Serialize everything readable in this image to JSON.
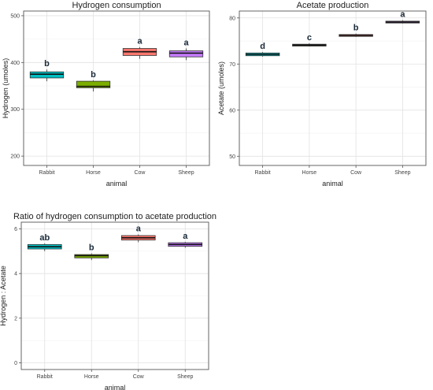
{
  "chart_data": [
    {
      "type": "box",
      "title": "Hydrogen consumption",
      "xlabel": "animal",
      "ylabel": "Hydrogen (umoles)",
      "categories": [
        "Rabbit",
        "Horse",
        "Cow",
        "Sheep"
      ],
      "ylim": [
        180,
        510
      ],
      "yticks": [
        200,
        300,
        400,
        500
      ],
      "boxes": [
        {
          "category": "Rabbit",
          "min": 360,
          "q1": 367,
          "median": 375,
          "q3": 380,
          "max": 385,
          "color": "#00bfc4",
          "letter": "b"
        },
        {
          "category": "Horse",
          "min": 338,
          "q1": 346,
          "median": 349,
          "q3": 360,
          "max": 362,
          "color": "#7cae00",
          "letter": "b"
        },
        {
          "category": "Cow",
          "min": 408,
          "q1": 415,
          "median": 423,
          "q3": 430,
          "max": 433,
          "color": "#f8766d",
          "letter": "a"
        },
        {
          "category": "Sheep",
          "min": 405,
          "q1": 412,
          "median": 420,
          "q3": 425,
          "max": 430,
          "color": "#c77cff",
          "letter": "a"
        }
      ],
      "grid": true
    },
    {
      "type": "box",
      "title": "Acetate production",
      "xlabel": "animal",
      "ylabel": "Acetate (umoles)",
      "categories": [
        "Rabbit",
        "Horse",
        "Cow",
        "Sheep"
      ],
      "ylim": [
        48,
        81.5
      ],
      "yticks": [
        50,
        60,
        70,
        80
      ],
      "boxes": [
        {
          "category": "Rabbit",
          "min": 71.6,
          "q1": 71.8,
          "median": 72.1,
          "q3": 72.4,
          "max": 72.6,
          "color": "#00bfc4",
          "letter": "d"
        },
        {
          "category": "Horse",
          "min": 73.8,
          "q1": 73.9,
          "median": 74.1,
          "q3": 74.3,
          "max": 74.5,
          "color": "#7cae00",
          "letter": "c"
        },
        {
          "category": "Cow",
          "min": 75.9,
          "q1": 76.0,
          "median": 76.2,
          "q3": 76.4,
          "max": 76.6,
          "color": "#f8766d",
          "letter": "b"
        },
        {
          "category": "Sheep",
          "min": 78.8,
          "q1": 78.9,
          "median": 79.1,
          "q3": 79.3,
          "max": 79.5,
          "color": "#c77cff",
          "letter": "a"
        }
      ],
      "grid": true
    },
    {
      "type": "box",
      "title": "Ratio of hydrogen consumption to acetate production",
      "xlabel": "animal",
      "ylabel": "Hydrogen : Acetate",
      "categories": [
        "Rabbit",
        "Horse",
        "Cow",
        "Sheep"
      ],
      "ylim": [
        -0.3,
        6.3
      ],
      "yticks": [
        0,
        2,
        4,
        6
      ],
      "boxes": [
        {
          "category": "Rabbit",
          "min": 5.0,
          "q1": 5.1,
          "median": 5.2,
          "q3": 5.3,
          "max": 5.35,
          "color": "#00bfc4",
          "letter": "ab"
        },
        {
          "category": "Horse",
          "min": 4.6,
          "q1": 4.7,
          "median": 4.8,
          "q3": 4.85,
          "max": 4.9,
          "color": "#7cae00",
          "letter": "b"
        },
        {
          "category": "Cow",
          "min": 5.4,
          "q1": 5.5,
          "median": 5.6,
          "q3": 5.7,
          "max": 5.75,
          "color": "#f8766d",
          "letter": "a"
        },
        {
          "category": "Sheep",
          "min": 5.15,
          "q1": 5.22,
          "median": 5.3,
          "q3": 5.38,
          "max": 5.42,
          "color": "#c77cff",
          "letter": "a"
        }
      ],
      "grid": true
    }
  ]
}
